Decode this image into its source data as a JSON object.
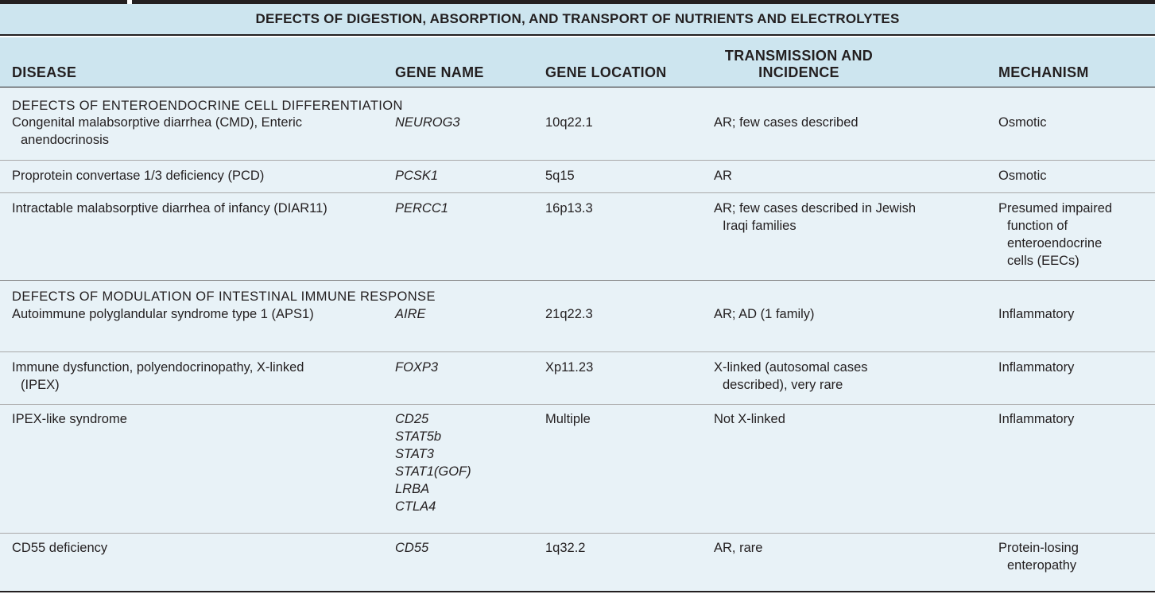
{
  "table": {
    "title": "DEFECTS OF DIGESTION, ABSORPTION, AND TRANSPORT OF NUTRIENTS AND ELECTROLYTES",
    "columns": {
      "disease": "DISEASE",
      "gene_name": "GENE NAME",
      "gene_location": "GENE LOCATION",
      "transmission_line1": "TRANSMISSION AND",
      "transmission_line2": "INCIDENCE",
      "mechanism": "MECHANISM"
    },
    "sections": [
      {
        "heading": "DEFECTS OF ENTEROENDOCRINE CELL DIFFERENTIATION",
        "rows": [
          {
            "disease": "Congenital malabsorptive diarrhea (CMD), Enteric anendocrinosis",
            "genes": [
              "NEUROG3"
            ],
            "location": "10q22.1",
            "transmission": "AR; few cases described",
            "mechanism": "Osmotic"
          },
          {
            "disease": "Proprotein convertase 1/3 deficiency (PCD)",
            "genes": [
              "PCSK1"
            ],
            "location": "5q15",
            "transmission": "AR",
            "mechanism": "Osmotic"
          },
          {
            "disease": "Intractable malabsorptive diarrhea of infancy (DIAR11)",
            "genes": [
              "PERCC1"
            ],
            "location": "16p13.3",
            "transmission": "AR; few cases described in Jewish Iraqi families",
            "mechanism": "Presumed impaired function of enteroendocrine cells (EECs)"
          }
        ]
      },
      {
        "heading": "DEFECTS OF MODULATION OF INTESTINAL IMMUNE RESPONSE",
        "rows": [
          {
            "disease": "Autoimmune polyglandular syndrome type 1 (APS1)",
            "genes": [
              "AIRE"
            ],
            "location": "21q22.3",
            "transmission": "AR; AD (1 family)",
            "mechanism": "Inflammatory"
          },
          {
            "disease": "Immune dysfunction, polyendocrinopathy, X-linked (IPEX)",
            "genes": [
              "FOXP3"
            ],
            "location": "Xp11.23",
            "transmission": "X-linked (autosomal cases described), very rare",
            "mechanism": "Inflammatory"
          },
          {
            "disease": "IPEX-like syndrome",
            "genes": [
              "CD25",
              "STAT5b",
              "STAT3",
              "STAT1(GOF)",
              "LRBA",
              "CTLA4"
            ],
            "location": "Multiple",
            "transmission": "Not X-linked",
            "mechanism": "Inflammatory"
          },
          {
            "disease": "CD55 deficiency",
            "genes": [
              "CD55"
            ],
            "location": "1q32.2",
            "transmission": "AR, rare",
            "mechanism": "Protein-losing enteropathy"
          }
        ]
      }
    ]
  }
}
